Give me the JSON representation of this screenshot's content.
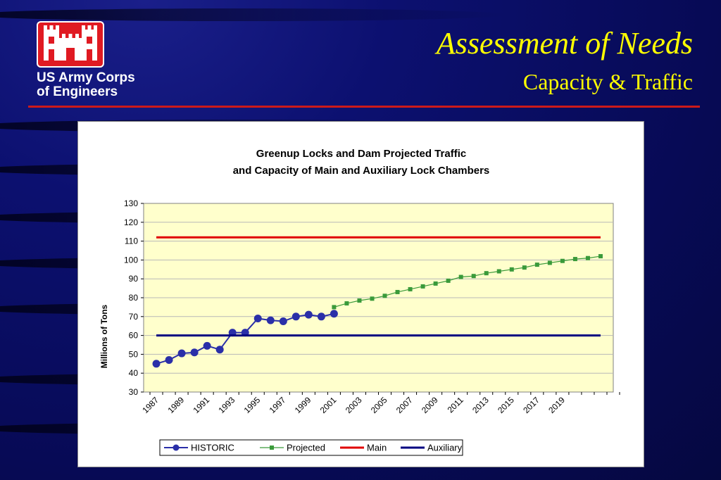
{
  "header": {
    "org_line1": "US Army Corps",
    "org_line2": "of Engineers",
    "title": "Assessment of Needs",
    "subtitle": "Capacity & Traffic"
  },
  "colors": {
    "title": "#ffff00",
    "rule": "#cc1a1a",
    "plot_bg": "#ffffcc",
    "historic": "#2a2fa8",
    "projected": "#3a9a3a",
    "main": "#e00000",
    "auxiliary": "#000080"
  },
  "chart_data": {
    "type": "line",
    "title_line1": "Greenup Locks and Dam Projected Traffic",
    "title_line2": "and Capacity of Main and Auxiliary Lock Chambers",
    "xlabel": "",
    "ylabel": "Millions of Tons",
    "ylim": [
      30,
      130
    ],
    "yticks": [
      30,
      40,
      50,
      60,
      70,
      80,
      90,
      100,
      110,
      120,
      130
    ],
    "x": [
      1987,
      1988,
      1989,
      1990,
      1991,
      1992,
      1993,
      1994,
      1995,
      1996,
      1997,
      1998,
      1999,
      2000,
      2001,
      2002,
      2003,
      2004,
      2005,
      2006,
      2007,
      2008,
      2009,
      2010,
      2011,
      2012,
      2013,
      2014,
      2015,
      2016,
      2017,
      2018,
      2019,
      2020,
      2021,
      2022
    ],
    "xtick_labels": [
      "1987",
      "1989",
      "1991",
      "1993",
      "1995",
      "1997",
      "1999",
      "2001",
      "2003",
      "2005",
      "2007",
      "2009",
      "2011",
      "2013",
      "2015",
      "2017",
      "2019"
    ],
    "grid": true,
    "legend_position": "bottom",
    "series": [
      {
        "name": "HISTORIC",
        "marker": "circle",
        "x": [
          1987,
          1988,
          1989,
          1990,
          1991,
          1992,
          1993,
          1994,
          1995,
          1996,
          1997,
          1998,
          1999,
          2000,
          2001
        ],
        "values": [
          45,
          47,
          50.5,
          51,
          54.5,
          52.5,
          61.5,
          61.5,
          69,
          68,
          67.5,
          70,
          71,
          70,
          71.5
        ]
      },
      {
        "name": "Projected",
        "marker": "square",
        "x": [
          2001,
          2002,
          2003,
          2004,
          2005,
          2006,
          2007,
          2008,
          2009,
          2010,
          2011,
          2012,
          2013,
          2014,
          2015,
          2016,
          2017,
          2018,
          2019,
          2020,
          2021,
          2022
        ],
        "values": [
          75,
          77,
          78.5,
          79.5,
          81,
          83,
          84.5,
          86,
          87.5,
          89,
          91,
          91.5,
          93,
          94,
          95,
          96,
          97.5,
          98.5,
          99.5,
          100.5,
          101,
          102
        ]
      },
      {
        "name": "Main",
        "marker": "none",
        "x": [
          1987,
          2022
        ],
        "values": [
          112,
          112
        ]
      },
      {
        "name": "Auxiliary",
        "marker": "none",
        "x": [
          1987,
          2022
        ],
        "values": [
          60,
          60
        ]
      }
    ]
  }
}
